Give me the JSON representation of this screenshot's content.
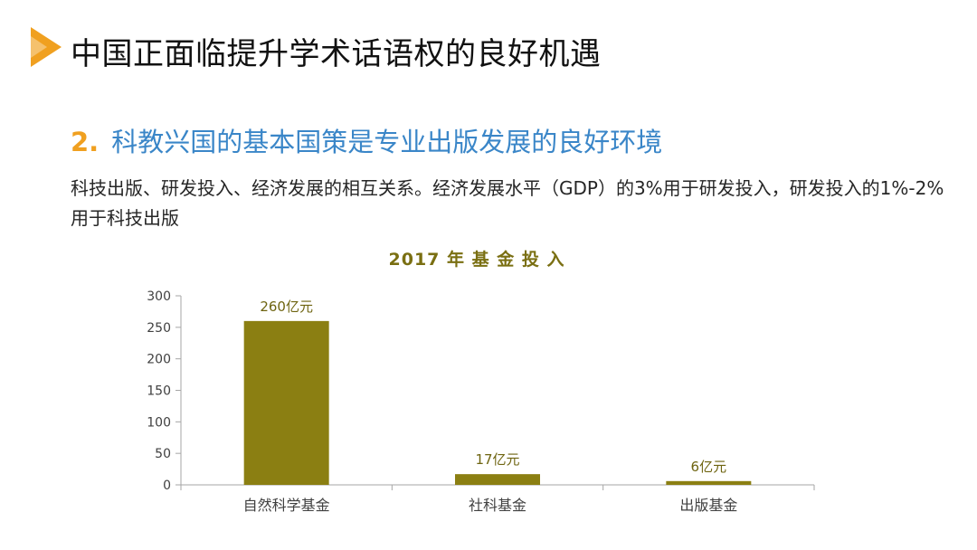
{
  "slide": {
    "title": "中国正面临提升学术话语权的良好机遇",
    "section_number": "2.",
    "section_title": "科教兴国的基本国策是专业出版发展的良好环境",
    "body_text": "科技出版、研发投入、经济发展的相互关系。经济发展水平（GDP）的3%用于研发投入，研发投入的1%-2%用于科技出版",
    "colors": {
      "accent": "#f0a020",
      "heading": "#3a86c8",
      "bar": "#8b7f12"
    }
  },
  "chart_data": {
    "type": "bar",
    "title": "2017 年 基 金 投 入",
    "categories": [
      "自然科学基金",
      "社科基金",
      "出版基金"
    ],
    "values": [
      260,
      17,
      6
    ],
    "data_labels": [
      "260亿元",
      "17亿元",
      "6亿元"
    ],
    "ylim": [
      0,
      300
    ],
    "yticks": [
      0,
      50,
      100,
      150,
      200,
      250,
      300
    ],
    "xlabel": "",
    "ylabel": "",
    "grid": false,
    "legend": "none"
  }
}
